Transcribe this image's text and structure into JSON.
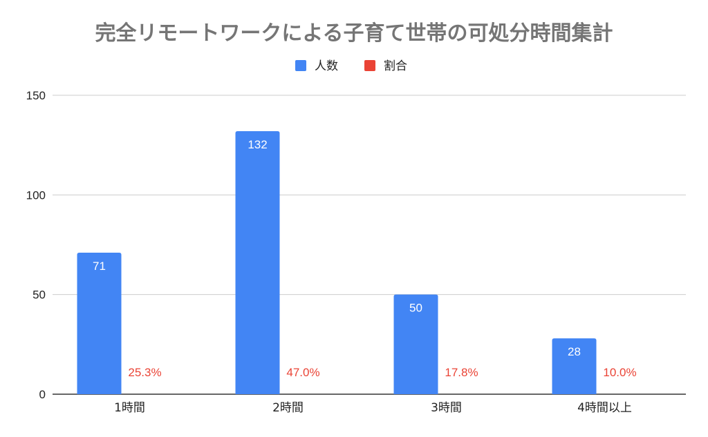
{
  "chart_data": {
    "type": "bar",
    "title": "完全リモートワークによる子育て世帯の可処分時間集計",
    "categories": [
      "1時間",
      "2時間",
      "3時間",
      "4時間以上"
    ],
    "series": [
      {
        "name": "人数",
        "values": [
          71,
          132,
          50,
          28
        ],
        "color": "#4285f4",
        "data_labels": [
          "71",
          "132",
          "50",
          "28"
        ]
      },
      {
        "name": "割合",
        "values": [
          25.3,
          47.0,
          17.8,
          10.0
        ],
        "color": "#ea4335",
        "data_labels": [
          "25.3%",
          "47.0%",
          "17.8%",
          "10.0%"
        ]
      }
    ],
    "xlabel": "",
    "ylabel": "",
    "ylim": [
      0,
      150
    ],
    "yticks": [
      "0",
      "50",
      "100",
      "150"
    ],
    "grid": true,
    "legend_position": "top-center"
  }
}
